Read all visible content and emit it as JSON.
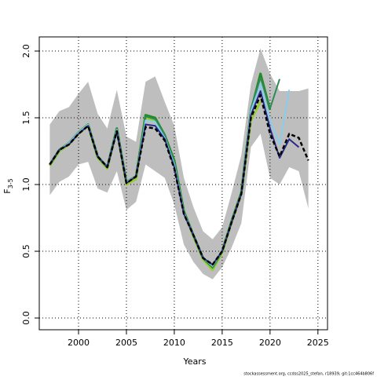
{
  "chart_data": {
    "type": "line",
    "ylabel": "F",
    "ylabel_sub": "3-5",
    "xlabel": "Years",
    "footer": "stockassessment.org, ccdss2025_stefan, r18939, git:1cc464b806f",
    "x": [
      1997,
      1998,
      1999,
      2000,
      2001,
      2002,
      2003,
      2004,
      2005,
      2006,
      2007,
      2008,
      2009,
      2010,
      2011,
      2012,
      2013,
      2014,
      2015,
      2016,
      2017,
      2018,
      2019,
      2020,
      2021,
      2022,
      2023,
      2024
    ],
    "band": {
      "color": "#bebebe",
      "upper": [
        1.45,
        1.55,
        1.58,
        1.68,
        1.77,
        1.53,
        1.42,
        1.71,
        1.36,
        1.32,
        1.77,
        1.81,
        1.62,
        1.44,
        1.05,
        0.83,
        0.65,
        0.59,
        0.68,
        0.94,
        1.22,
        1.75,
        2.02,
        1.83,
        1.7,
        1.7,
        1.7,
        1.72
      ],
      "lower": [
        0.92,
        1.02,
        1.06,
        1.15,
        1.17,
        0.97,
        0.94,
        1.1,
        0.81,
        0.87,
        1.15,
        1.1,
        1.05,
        0.85,
        0.55,
        0.42,
        0.33,
        0.29,
        0.38,
        0.53,
        0.71,
        1.28,
        1.38,
        1.05,
        1.0,
        1.13,
        1.1,
        0.82
      ]
    },
    "series": [
      {
        "color": "#9acd32",
        "width": 3,
        "values": [
          1.14,
          1.25,
          1.3,
          1.38,
          1.44,
          1.2,
          1.12,
          1.41,
          1.0,
          1.04,
          1.5,
          1.48,
          1.36,
          1.16,
          0.8,
          0.61,
          0.44,
          0.36,
          0.49,
          0.72,
          0.93,
          1.48,
          1.62,
          null,
          null,
          null,
          null,
          null
        ]
      },
      {
        "color": "#228b22",
        "width": 3,
        "values": [
          1.15,
          1.26,
          1.31,
          1.39,
          1.45,
          1.21,
          1.13,
          1.42,
          1.02,
          1.06,
          1.52,
          1.5,
          1.37,
          1.18,
          0.8,
          0.62,
          0.45,
          0.38,
          0.5,
          0.73,
          0.94,
          1.55,
          1.83,
          1.56,
          null,
          null,
          null,
          null
        ]
      },
      {
        "color": "#2e8b57",
        "width": 2,
        "values": [
          1.15,
          1.26,
          1.31,
          1.39,
          1.45,
          1.21,
          1.13,
          1.42,
          1.02,
          1.06,
          1.51,
          1.49,
          1.37,
          1.17,
          0.8,
          0.62,
          0.45,
          0.38,
          0.5,
          0.73,
          0.94,
          1.57,
          1.8,
          1.57,
          1.79,
          null,
          null,
          null
        ]
      },
      {
        "color": "#87ceeb",
        "width": 2,
        "values": [
          1.15,
          1.26,
          1.31,
          1.39,
          1.45,
          1.21,
          1.13,
          1.41,
          1.02,
          1.06,
          1.48,
          1.47,
          1.35,
          1.15,
          0.79,
          0.62,
          0.45,
          0.39,
          0.5,
          0.72,
          0.93,
          1.55,
          1.75,
          1.48,
          1.3,
          1.71,
          null,
          null
        ]
      },
      {
        "color": "#2a2a8c",
        "width": 2,
        "values": [
          1.15,
          1.26,
          1.3,
          1.38,
          1.44,
          1.21,
          1.13,
          1.4,
          1.01,
          1.06,
          1.45,
          1.44,
          1.34,
          1.13,
          0.78,
          0.62,
          0.45,
          0.4,
          0.5,
          0.72,
          0.93,
          1.52,
          1.7,
          1.42,
          1.2,
          1.34,
          1.28,
          null
        ]
      },
      {
        "color": "#000000",
        "width": 2.5,
        "dashed": true,
        "values": [
          1.15,
          1.26,
          1.3,
          1.38,
          1.44,
          1.21,
          1.13,
          1.4,
          1.01,
          1.06,
          1.43,
          1.42,
          1.33,
          1.12,
          0.78,
          0.62,
          0.45,
          0.4,
          0.5,
          0.72,
          0.93,
          1.5,
          1.67,
          1.38,
          1.21,
          1.38,
          1.35,
          1.18
        ]
      }
    ],
    "xlim": [
      1995.9,
      2026.0
    ],
    "ylim": [
      -0.088,
      2.106
    ],
    "xticks": [
      2000,
      2005,
      2010,
      2015,
      2020,
      2025
    ],
    "yticks": [
      {
        "value": 0,
        "label": "0.0"
      },
      {
        "value": 0.5,
        "label": "0.5"
      },
      {
        "value": 1,
        "label": "1.0"
      },
      {
        "value": 1.5,
        "label": "1.5"
      },
      {
        "value": 2,
        "label": "2.0"
      }
    ],
    "grid": true
  }
}
